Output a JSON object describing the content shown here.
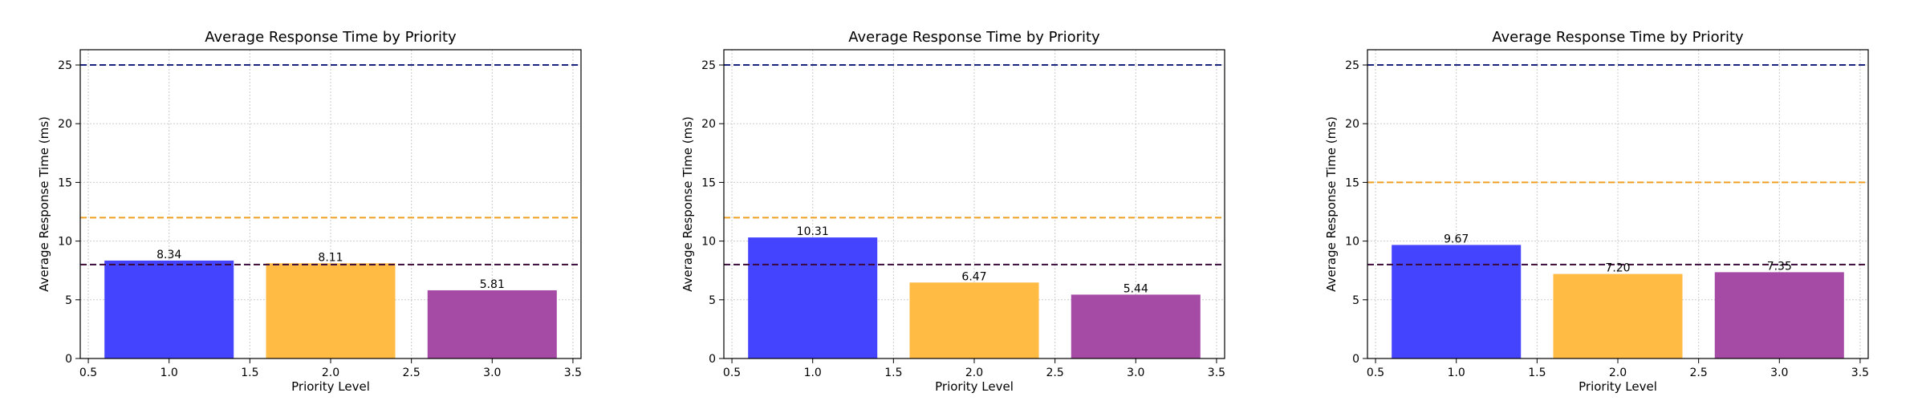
{
  "figure": {
    "background": "#ffffff"
  },
  "chart_data": [
    {
      "type": "bar",
      "title": "Average Response Time by Priority",
      "xlabel": "Priority Level",
      "ylabel": "Average Response Time (ms)",
      "x": [
        1.0,
        2.0,
        3.0
      ],
      "values": [
        8.34,
        8.11,
        5.81
      ],
      "value_labels": [
        "8.34",
        "8.11",
        "5.81"
      ],
      "bar_width": 0.8,
      "bar_colors": [
        "#4444ff",
        "#ffbb44",
        "#a54aa5"
      ],
      "xlim": [
        0.45,
        3.55
      ],
      "ylim": [
        0,
        26.3
      ],
      "xticks": [
        0.5,
        1.0,
        1.5,
        2.0,
        2.5,
        3.0,
        3.5
      ],
      "xtick_labels": [
        "0.5",
        "1.0",
        "1.5",
        "2.0",
        "2.5",
        "3.0",
        "3.5"
      ],
      "yticks": [
        0,
        5,
        10,
        15,
        20,
        25
      ],
      "ytick_labels": [
        "0",
        "5",
        "10",
        "15",
        "20",
        "25"
      ],
      "grid": true,
      "reference_lines": [
        {
          "y": 25,
          "color": "#1a237e",
          "style": "dashed"
        },
        {
          "y": 12,
          "color": "#f0a020",
          "style": "dashed"
        },
        {
          "y": 8,
          "color": "#3a0a3a",
          "style": "dashed"
        }
      ]
    },
    {
      "type": "bar",
      "title": "Average Response Time by Priority",
      "xlabel": "Priority Level",
      "ylabel": "Average Response Time (ms)",
      "x": [
        1.0,
        2.0,
        3.0
      ],
      "values": [
        10.31,
        6.47,
        5.44
      ],
      "value_labels": [
        "10.31",
        "6.47",
        "5.44"
      ],
      "bar_width": 0.8,
      "bar_colors": [
        "#4444ff",
        "#ffbb44",
        "#a54aa5"
      ],
      "xlim": [
        0.45,
        3.55
      ],
      "ylim": [
        0,
        26.3
      ],
      "xticks": [
        0.5,
        1.0,
        1.5,
        2.0,
        2.5,
        3.0,
        3.5
      ],
      "xtick_labels": [
        "0.5",
        "1.0",
        "1.5",
        "2.0",
        "2.5",
        "3.0",
        "3.5"
      ],
      "yticks": [
        0,
        5,
        10,
        15,
        20,
        25
      ],
      "ytick_labels": [
        "0",
        "5",
        "10",
        "15",
        "20",
        "25"
      ],
      "grid": true,
      "reference_lines": [
        {
          "y": 25,
          "color": "#1a237e",
          "style": "dashed"
        },
        {
          "y": 12,
          "color": "#f0a020",
          "style": "dashed"
        },
        {
          "y": 8,
          "color": "#3a0a3a",
          "style": "dashed"
        }
      ]
    },
    {
      "type": "bar",
      "title": "Average Response Time by Priority",
      "xlabel": "Priority Level",
      "ylabel": "Average Response Time (ms)",
      "x": [
        1.0,
        2.0,
        3.0
      ],
      "values": [
        9.67,
        7.2,
        7.35
      ],
      "value_labels": [
        "9.67",
        "7.20",
        "7.35"
      ],
      "bar_width": 0.8,
      "bar_colors": [
        "#4444ff",
        "#ffbb44",
        "#a54aa5"
      ],
      "xlim": [
        0.45,
        3.55
      ],
      "ylim": [
        0,
        26.3
      ],
      "xticks": [
        0.5,
        1.0,
        1.5,
        2.0,
        2.5,
        3.0,
        3.5
      ],
      "xtick_labels": [
        "0.5",
        "1.0",
        "1.5",
        "2.0",
        "2.5",
        "3.0",
        "3.5"
      ],
      "yticks": [
        0,
        5,
        10,
        15,
        20,
        25
      ],
      "ytick_labels": [
        "0",
        "5",
        "10",
        "15",
        "20",
        "25"
      ],
      "grid": true,
      "reference_lines": [
        {
          "y": 25,
          "color": "#1a237e",
          "style": "dashed"
        },
        {
          "y": 15,
          "color": "#f0a020",
          "style": "dashed"
        },
        {
          "y": 8,
          "color": "#3a0a3a",
          "style": "dashed"
        }
      ]
    }
  ]
}
